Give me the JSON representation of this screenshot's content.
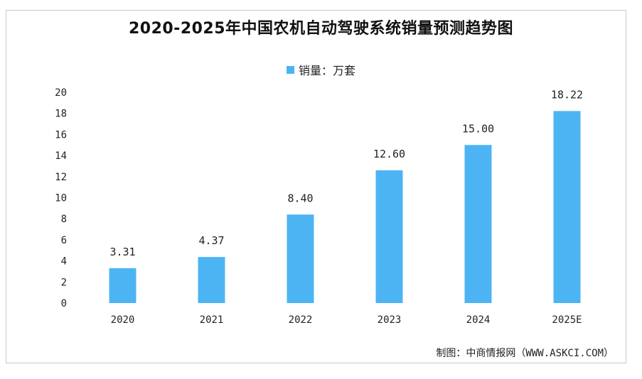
{
  "chart_data": {
    "type": "bar",
    "title": "2020-2025年中国农机自动驾驶系统销量预测趋势图",
    "legend": "销量：万套",
    "categories": [
      "2020",
      "2021",
      "2022",
      "2023",
      "2024",
      "2025E"
    ],
    "values": [
      3.31,
      4.37,
      8.4,
      12.6,
      15.0,
      18.22
    ],
    "value_labels": [
      "3.31",
      "4.37",
      "8.40",
      "12.60",
      "15.00",
      "18.22"
    ],
    "ylim": [
      0,
      20
    ],
    "yticks": [
      "0",
      "2",
      "4",
      "6",
      "8",
      "10",
      "12",
      "14",
      "16",
      "18",
      "20"
    ],
    "xlabel": "",
    "ylabel": "",
    "grid": false,
    "legend_position": "top-center",
    "bar_color": "#4db4f4"
  },
  "source": "制图：中商情报网（WWW.ASKCI.COM）"
}
